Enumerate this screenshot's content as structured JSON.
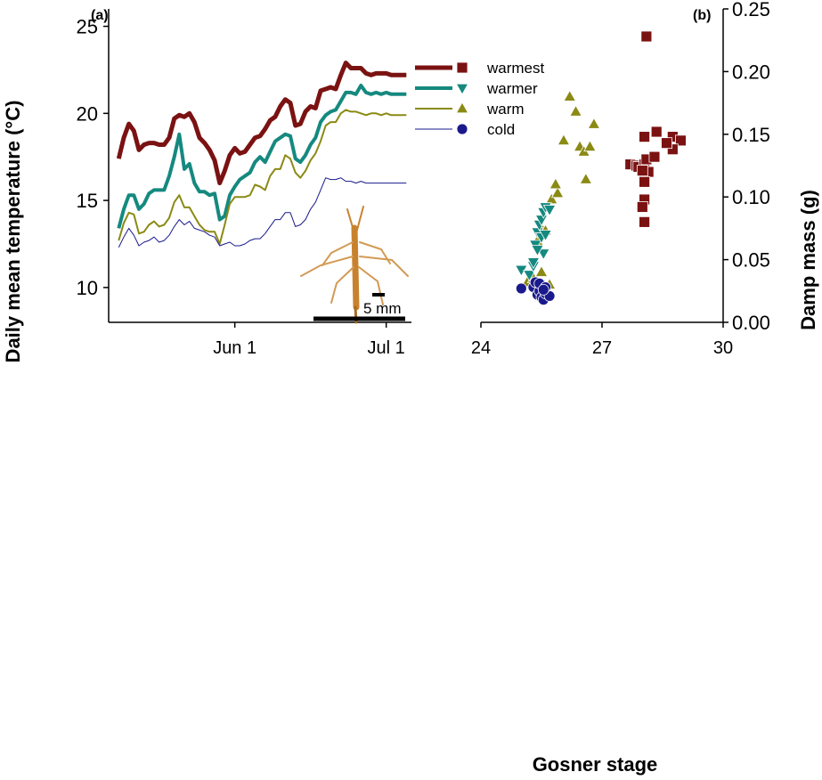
{
  "colors": {
    "warmest": "#7b1212",
    "warmer": "#15897f",
    "warm": "#8a8a14",
    "cold": "#1a1a8c",
    "insect": "#c8822e"
  },
  "scale_bar_label": "5 mm",
  "chart_data": [
    {
      "type": "line",
      "panel_label": "(a)",
      "ylabel": "Daily mean temperature (°C)",
      "xlabel": "",
      "ylim": [
        8,
        26
      ],
      "yticks": [
        10,
        15,
        20,
        25
      ],
      "xlim": [
        -25,
        35
      ],
      "xticks": [
        {
          "label": "Jun 1",
          "value": 0
        },
        {
          "label": "Jul 1",
          "value": 30
        }
      ],
      "grid": false,
      "legend_position": "right-of-plot-top",
      "legend": [
        {
          "name": "warmest",
          "marker": "square"
        },
        {
          "name": "warmer",
          "marker": "triangle-down"
        },
        {
          "name": "warm",
          "marker": "triangle-up"
        },
        {
          "name": "cold",
          "marker": "circle"
        }
      ],
      "x": [
        -23,
        -22,
        -21,
        -20,
        -19,
        -18,
        -17,
        -16,
        -15,
        -14,
        -13,
        -12,
        -11,
        -10,
        -9,
        -8,
        -7,
        -6,
        -5,
        -4,
        -3,
        -2,
        -1,
        0,
        1,
        2,
        3,
        4,
        5,
        6,
        7,
        8,
        9,
        10,
        11,
        12,
        13,
        14,
        15,
        16,
        17,
        18,
        19,
        20,
        21,
        22,
        23,
        24,
        25,
        26,
        27,
        28,
        29,
        30,
        31,
        32,
        33,
        34
      ],
      "series": [
        {
          "name": "warmest",
          "width": 5,
          "values": [
            17.4,
            18.6,
            19.4,
            19.0,
            17.9,
            18.2,
            18.3,
            18.3,
            18.2,
            18.2,
            18.6,
            19.7,
            19.9,
            19.8,
            20.0,
            19.5,
            18.6,
            18.3,
            17.9,
            17.3,
            16.0,
            16.7,
            17.6,
            18.0,
            17.7,
            17.8,
            18.2,
            18.6,
            18.7,
            19.1,
            19.6,
            19.8,
            20.4,
            20.8,
            20.6,
            19.3,
            19.4,
            20.1,
            20.4,
            20.3,
            21.3,
            21.4,
            21.5,
            21.4,
            22.2,
            22.9,
            22.6,
            22.6,
            22.6,
            22.3,
            22.2,
            22.3,
            22.3,
            22.3,
            22.2,
            22.2,
            22.2,
            22.2
          ]
        },
        {
          "name": "warmer",
          "width": 4,
          "values": [
            13.4,
            14.5,
            15.3,
            15.3,
            14.5,
            14.8,
            15.4,
            15.6,
            15.6,
            15.6,
            16.4,
            17.5,
            18.8,
            16.8,
            17.1,
            16.0,
            15.5,
            15.5,
            15.3,
            15.4,
            13.9,
            14.1,
            15.3,
            15.8,
            16.2,
            16.4,
            16.6,
            17.2,
            17.5,
            17.2,
            17.8,
            18.4,
            18.6,
            18.8,
            18.7,
            17.4,
            17.2,
            17.6,
            18.2,
            18.6,
            19.5,
            19.9,
            20.1,
            20.2,
            20.7,
            21.2,
            21.2,
            21.1,
            21.6,
            21.2,
            21.1,
            21.2,
            21.1,
            21.2,
            21.1,
            21.1,
            21.1,
            21.1
          ]
        },
        {
          "name": "warm",
          "width": 2,
          "values": [
            12.7,
            13.7,
            14.3,
            14.2,
            13.1,
            13.2,
            13.6,
            13.8,
            13.5,
            13.6,
            14.0,
            14.9,
            15.3,
            14.6,
            14.6,
            14.1,
            13.6,
            13.3,
            13.2,
            13.2,
            12.5,
            13.6,
            14.8,
            15.2,
            15.2,
            15.2,
            15.3,
            15.9,
            15.8,
            15.6,
            16.4,
            16.8,
            16.8,
            17.6,
            17.4,
            16.6,
            16.3,
            16.7,
            17.3,
            17.7,
            18.4,
            19.3,
            19.5,
            19.5,
            20.0,
            20.2,
            20.1,
            20.1,
            20.0,
            19.9,
            20.0,
            20.0,
            19.9,
            20.0,
            19.9,
            19.9,
            19.9,
            19.9
          ]
        },
        {
          "name": "cold",
          "width": 1,
          "values": [
            12.3,
            12.9,
            13.4,
            13.0,
            12.4,
            12.6,
            12.7,
            12.9,
            12.6,
            12.7,
            13.0,
            13.5,
            13.9,
            13.6,
            13.8,
            13.4,
            13.3,
            13.2,
            13.0,
            12.9,
            12.4,
            12.5,
            12.6,
            12.4,
            12.4,
            12.5,
            12.7,
            12.8,
            12.8,
            13.1,
            13.5,
            13.9,
            13.9,
            14.3,
            14.3,
            13.5,
            13.6,
            13.9,
            14.5,
            14.9,
            15.6,
            16.3,
            16.2,
            16.2,
            16.3,
            16.1,
            16.1,
            16.0,
            16.1,
            16.0,
            16.0,
            16.0,
            16.0,
            16.0,
            16.0,
            16.0,
            16.0,
            16.0
          ]
        }
      ]
    },
    {
      "type": "scatter",
      "panel_label": "(b)",
      "xlabel": "Gosner stage",
      "ylabel": "Damp mass (g)",
      "xlim": [
        24,
        30
      ],
      "xticks": [
        24,
        27,
        30
      ],
      "ylim": [
        0,
        0.25
      ],
      "yticks": [
        "0.00",
        "0.05",
        "0.10",
        "0.15",
        "0.20",
        "0.25"
      ],
      "ytick_values": [
        0,
        0.05,
        0.1,
        0.15,
        0.2,
        0.25
      ],
      "grid": false,
      "series": [
        {
          "name": "warmest",
          "marker": "square",
          "points": [
            [
              28.1,
              0.228
            ],
            [
              27.7,
              0.126
            ],
            [
              27.85,
              0.125
            ],
            [
              27.9,
              0.124
            ],
            [
              28.05,
              0.126
            ],
            [
              28.15,
              0.12
            ],
            [
              28.1,
              0.13
            ],
            [
              28.3,
              0.132
            ],
            [
              28.05,
              0.148
            ],
            [
              28.35,
              0.152
            ],
            [
              28.75,
              0.148
            ],
            [
              28.95,
              0.145
            ],
            [
              28.75,
              0.138
            ],
            [
              28.6,
              0.143
            ],
            [
              28.05,
              0.112
            ],
            [
              28.05,
              0.098
            ],
            [
              28.0,
              0.092
            ],
            [
              28.05,
              0.08
            ],
            [
              28.0,
              0.121
            ]
          ]
        },
        {
          "name": "warmer",
          "marker": "triangle-down",
          "points": [
            [
              25.0,
              0.042
            ],
            [
              25.2,
              0.038
            ],
            [
              25.3,
              0.045
            ],
            [
              25.35,
              0.062
            ],
            [
              25.4,
              0.072
            ],
            [
              25.45,
              0.078
            ],
            [
              25.5,
              0.082
            ],
            [
              25.55,
              0.088
            ],
            [
              25.6,
              0.092
            ],
            [
              25.7,
              0.09
            ],
            [
              25.5,
              0.068
            ],
            [
              25.6,
              0.07
            ],
            [
              25.55,
              0.055
            ],
            [
              25.4,
              0.058
            ],
            [
              25.3,
              0.048
            ]
          ]
        },
        {
          "name": "warm",
          "marker": "triangle-up",
          "points": [
            [
              25.15,
              0.032
            ],
            [
              25.3,
              0.035
            ],
            [
              25.5,
              0.04
            ],
            [
              25.55,
              0.029
            ],
            [
              25.6,
              0.024
            ],
            [
              25.7,
              0.03
            ],
            [
              25.4,
              0.065
            ],
            [
              25.5,
              0.075
            ],
            [
              25.6,
              0.073
            ],
            [
              25.75,
              0.098
            ],
            [
              25.9,
              0.103
            ],
            [
              25.85,
              0.11
            ],
            [
              26.05,
              0.145
            ],
            [
              26.2,
              0.18
            ],
            [
              26.35,
              0.168
            ],
            [
              26.45,
              0.14
            ],
            [
              26.55,
              0.136
            ],
            [
              26.6,
              0.114
            ],
            [
              26.7,
              0.14
            ],
            [
              26.8,
              0.158
            ]
          ]
        },
        {
          "name": "cold",
          "marker": "circle",
          "points": [
            [
              25.0,
              0.027
            ],
            [
              25.3,
              0.028
            ],
            [
              25.4,
              0.022
            ],
            [
              25.45,
              0.025
            ],
            [
              25.5,
              0.02
            ],
            [
              25.55,
              0.018
            ],
            [
              25.6,
              0.023
            ],
            [
              25.7,
              0.021
            ],
            [
              25.5,
              0.03
            ],
            [
              25.35,
              0.032
            ],
            [
              25.45,
              0.031
            ],
            [
              25.6,
              0.028
            ],
            [
              25.55,
              0.026
            ]
          ]
        }
      ]
    }
  ]
}
